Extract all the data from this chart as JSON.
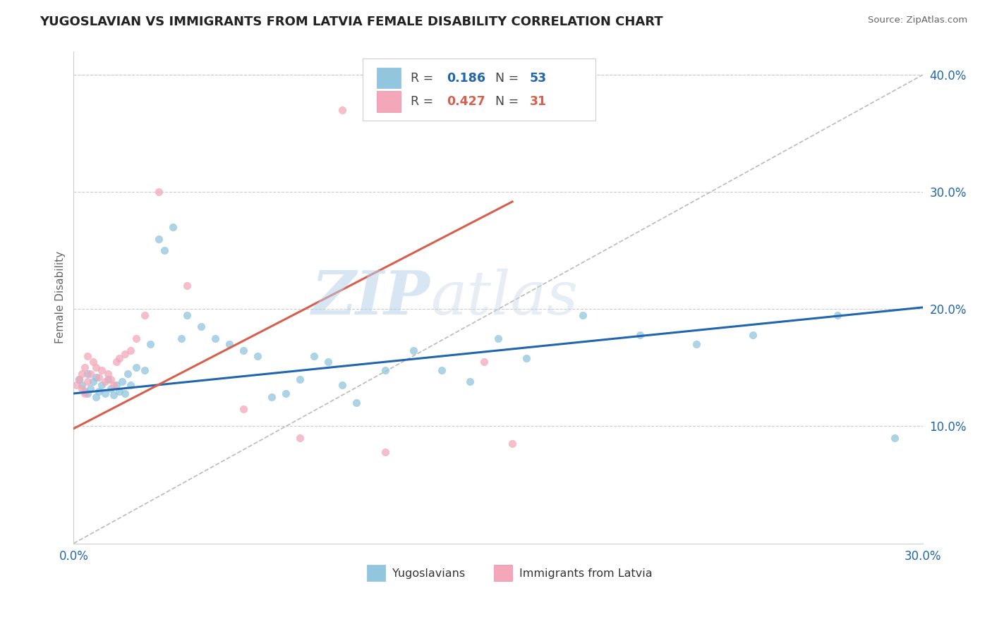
{
  "title": "YUGOSLAVIAN VS IMMIGRANTS FROM LATVIA FEMALE DISABILITY CORRELATION CHART",
  "source": "Source: ZipAtlas.com",
  "ylabel": "Female Disability",
  "xlim": [
    0.0,
    0.3
  ],
  "ylim": [
    0.0,
    0.42
  ],
  "y_ticks": [
    0.1,
    0.2,
    0.3,
    0.4
  ],
  "blue_color": "#92c5de",
  "pink_color": "#f4a7b9",
  "blue_line_color": "#2166ac",
  "pink_line_color": "#d6604d",
  "ref_line_color": "#bbbbbb",
  "watermark": "ZIPatlas",
  "blue_r": "0.186",
  "blue_n": "53",
  "pink_r": "0.427",
  "pink_n": "31",
  "blue_intercept": 0.128,
  "blue_slope": 0.245,
  "pink_intercept": 0.098,
  "pink_slope": 1.25,
  "pink_line_xmax": 0.155,
  "yugoslavian_x": [
    0.002,
    0.003,
    0.004,
    0.005,
    0.005,
    0.006,
    0.007,
    0.008,
    0.008,
    0.009,
    0.01,
    0.011,
    0.012,
    0.013,
    0.014,
    0.015,
    0.016,
    0.017,
    0.018,
    0.019,
    0.02,
    0.022,
    0.025,
    0.027,
    0.03,
    0.032,
    0.035,
    0.038,
    0.04,
    0.045,
    0.05,
    0.055,
    0.06,
    0.065,
    0.07,
    0.075,
    0.08,
    0.085,
    0.09,
    0.095,
    0.1,
    0.11,
    0.12,
    0.13,
    0.14,
    0.15,
    0.16,
    0.18,
    0.2,
    0.22,
    0.24,
    0.27,
    0.29
  ],
  "yugoslavian_y": [
    0.14,
    0.135,
    0.13,
    0.128,
    0.145,
    0.132,
    0.138,
    0.125,
    0.142,
    0.13,
    0.135,
    0.128,
    0.14,
    0.132,
    0.127,
    0.135,
    0.13,
    0.138,
    0.128,
    0.145,
    0.135,
    0.15,
    0.148,
    0.17,
    0.26,
    0.25,
    0.27,
    0.175,
    0.195,
    0.185,
    0.175,
    0.17,
    0.165,
    0.16,
    0.125,
    0.128,
    0.14,
    0.16,
    0.155,
    0.135,
    0.12,
    0.148,
    0.165,
    0.148,
    0.138,
    0.175,
    0.158,
    0.195,
    0.178,
    0.17,
    0.178,
    0.195,
    0.09
  ],
  "latvia_x": [
    0.001,
    0.002,
    0.003,
    0.003,
    0.004,
    0.004,
    0.005,
    0.005,
    0.006,
    0.007,
    0.008,
    0.009,
    0.01,
    0.011,
    0.012,
    0.013,
    0.014,
    0.015,
    0.016,
    0.018,
    0.02,
    0.022,
    0.025,
    0.03,
    0.04,
    0.06,
    0.08,
    0.095,
    0.11,
    0.145,
    0.155
  ],
  "latvia_y": [
    0.135,
    0.14,
    0.145,
    0.132,
    0.128,
    0.15,
    0.138,
    0.16,
    0.145,
    0.155,
    0.15,
    0.142,
    0.148,
    0.138,
    0.145,
    0.14,
    0.135,
    0.155,
    0.158,
    0.162,
    0.165,
    0.175,
    0.195,
    0.3,
    0.22,
    0.115,
    0.09,
    0.37,
    0.078,
    0.155,
    0.085
  ]
}
